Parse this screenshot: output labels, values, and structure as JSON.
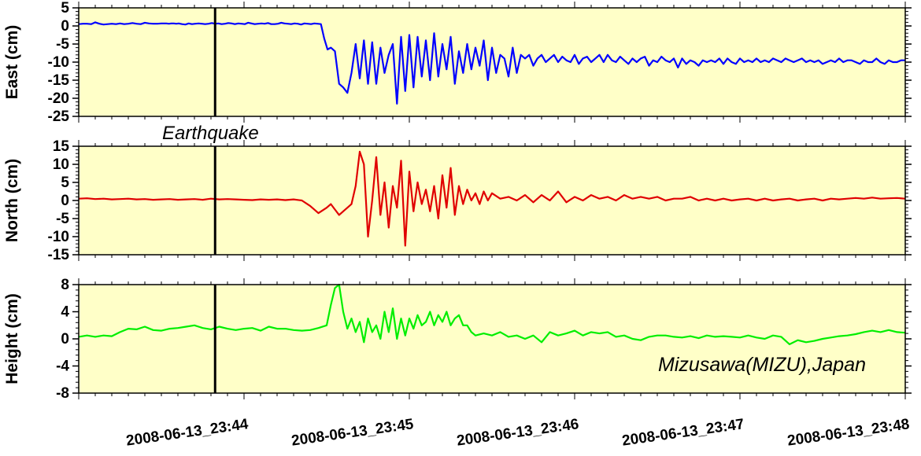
{
  "chart_data": [
    {
      "type": "line",
      "panel": "east",
      "ylabel": "East (cm)",
      "ylim": [
        -25,
        5
      ],
      "yticks": [
        5,
        0,
        -5,
        -10,
        -15,
        -20,
        -25
      ],
      "series": [
        {
          "color": "#0000ff",
          "t": [
            0,
            0.05,
            0.1,
            0.15,
            0.2,
            0.25,
            0.3,
            0.35,
            0.4,
            0.45,
            0.5,
            0.55,
            0.6,
            0.65,
            0.7,
            0.75,
            0.8,
            0.85,
            0.9,
            0.95,
            1.0,
            1.03,
            1.06,
            1.09,
            1.12,
            1.15,
            1.18,
            1.21,
            1.25,
            1.29,
            1.33,
            1.37,
            1.41,
            1.45,
            1.49,
            1.53,
            1.57,
            1.61,
            1.65,
            1.69,
            1.73,
            1.77,
            1.81,
            1.85,
            1.89,
            1.93,
            1.97,
            2.01,
            2.05,
            2.09,
            2.13,
            2.17,
            2.21,
            2.25,
            2.29,
            2.33,
            2.37,
            2.41,
            2.45,
            2.49,
            2.53,
            2.57,
            2.61,
            2.65,
            2.69,
            2.73,
            2.77,
            2.81,
            2.85,
            2.89,
            2.93,
            2.97,
            3.01,
            3.05,
            3.1,
            3.15,
            3.2,
            3.25,
            3.3,
            3.35,
            3.4,
            3.45,
            3.5,
            3.55,
            3.6,
            3.65,
            3.7,
            3.75,
            3.8,
            3.85,
            3.9,
            3.95,
            4.0,
            4.05,
            4.1,
            4.15,
            4.2,
            4.25,
            4.3,
            4.35,
            4.4,
            4.45,
            4.5,
            4.55,
            4.6,
            4.65,
            4.7,
            4.75,
            4.8,
            4.85,
            4.9,
            4.95,
            5.0,
            5.05,
            5.1,
            5.15,
            5.2,
            5.25,
            5.3,
            5.35,
            5.4,
            5.45,
            5.5,
            5.55,
            5.6,
            5.65,
            5.7,
            5.75,
            5.8,
            5.85,
            5.9,
            5.95,
            6.0,
            6.05,
            6.1,
            6.15,
            6.2,
            6.25,
            6.3,
            6.35,
            6.4,
            6.45,
            6.5,
            6.55,
            6.6,
            6.65,
            6.7,
            6.75,
            6.8,
            6.85,
            6.9,
            6.95,
            7.0,
            7.05,
            7.1,
            7.15,
            7.2,
            7.25,
            7.3,
            7.35,
            7.4,
            7.45,
            7.5,
            7.55,
            7.6,
            7.65,
            7.7,
            7.75,
            7.8,
            7.85,
            7.9,
            7.95,
            8.0,
            8.05,
            8.1,
            8.15,
            8.2,
            8.25,
            8.3,
            8.35,
            8.4,
            8.45,
            8.5,
            8.55,
            8.6,
            8.65,
            8.7,
            8.75,
            8.8,
            8.85,
            8.9,
            8.95,
            9.0,
            9.05,
            9.1,
            9.15,
            9.2,
            9.25,
            9.3,
            9.35,
            9.4,
            9.45,
            9.5,
            9.55,
            9.6,
            9.65,
            9.7,
            9.75,
            9.8,
            9.85,
            9.9,
            9.95,
            10.0
          ],
          "v": [
            0.5,
            0.6,
            0.6,
            0.5,
            1.0,
            0.6,
            0.4,
            0.5,
            0.6,
            0.5,
            0.7,
            0.5,
            0.6,
            0.8,
            0.6,
            0.5,
            0.9,
            0.7,
            0.6,
            0.6,
            0.7,
            0.7,
            0.7,
            0.6,
            0.7,
            0.7,
            0.6,
            0.7,
            0.5,
            0.4,
            0.7,
            0.5,
            0.6,
            0.7,
            0.6,
            0.5,
            0.6,
            0.8,
            0.6,
            0.7,
            0.5,
            0.6,
            0.8,
            0.7,
            0.5,
            0.7,
            0.6,
            0.5,
            0.9,
            0.7,
            0.5,
            0.6,
            0.7,
            0.6,
            0.8,
            0.5,
            0.5,
            0.6,
            0.9,
            0.7,
            0.6,
            0.5,
            0.7,
            0.6,
            0.4,
            0.7,
            0.6,
            0.5,
            0.7,
            0.6,
            0.5,
            -3.5,
            -6.5,
            -6.0,
            -7.0,
            -16.0,
            -17.0,
            -18.5,
            -13.0,
            -5.0,
            -14.5,
            -4.0,
            -16.0,
            -4.5,
            -16.0,
            -6.0,
            -13.0,
            -8.0,
            -5.0,
            -21.5,
            -3.0,
            -18.0,
            -2.5,
            -17.0,
            -3.0,
            -14.0,
            -4.0,
            -15.0,
            -2.0,
            -14.0,
            -5.0,
            -12.0,
            -3.0,
            -16.0,
            -7.0,
            -13.0,
            -5.0,
            -12.0,
            -6.0,
            -11.0,
            -4.0,
            -15.0,
            -6.0,
            -13.0,
            -8.0,
            -9.0,
            -14.0,
            -6.0,
            -13.0,
            -8.0,
            -9.0,
            -8.0,
            -11.0,
            -9.0,
            -8.0,
            -10.0,
            -9.0,
            -8.0,
            -10.0,
            -8.5,
            -9.5,
            -10.0,
            -8.0,
            -10.5,
            -9.0,
            -8.5,
            -10.0,
            -9.0,
            -8.0,
            -10.0,
            -8.0,
            -9.5,
            -10.0,
            -8.5,
            -9.5,
            -10.5,
            -9.0,
            -10.0,
            -9.0,
            -8.5,
            -11.0,
            -9.5,
            -10.0,
            -8.5,
            -9.5,
            -10.0,
            -9.0,
            -11.5,
            -9.0,
            -10.5,
            -9.5,
            -10.0,
            -11.0,
            -9.5,
            -10.0,
            -9.5,
            -10.0,
            -9.0,
            -10.5,
            -9.0,
            -10.0,
            -10.5,
            -9.0,
            -10.0,
            -9.5,
            -10.0,
            -9.0,
            -10.0,
            -9.5,
            -10.0,
            -9.0,
            -9.5,
            -10.0,
            -9.0,
            -9.5,
            -10.0,
            -9.5,
            -9.0,
            -10.0,
            -9.5,
            -10.0,
            -9.5,
            -10.5,
            -10.0,
            -9.5,
            -10.0,
            -9.0,
            -10.0,
            -9.5,
            -9.5,
            -10.0,
            -10.5,
            -9.5,
            -10.0,
            -10.0,
            -9.0,
            -10.0,
            -10.5,
            -9.5,
            -10.0,
            -10.0,
            -9.5,
            -9.5,
            -10.5,
            -10.0,
            -9.0,
            -10.0,
            -10.0,
            -9.5,
            -10.0
          ]
        }
      ]
    },
    {
      "type": "line",
      "panel": "north",
      "ylabel": "North (cm)",
      "ylim": [
        -15,
        15
      ],
      "yticks": [
        15,
        10,
        5,
        0,
        -5,
        -10,
        -15
      ],
      "series": [
        {
          "color": "#e00000",
          "t": [
            0,
            0.1,
            0.2,
            0.3,
            0.4,
            0.5,
            0.6,
            0.7,
            0.8,
            0.9,
            1.0,
            1.1,
            1.2,
            1.3,
            1.4,
            1.5,
            1.6,
            1.7,
            1.8,
            1.9,
            2.0,
            2.1,
            2.2,
            2.3,
            2.4,
            2.5,
            2.6,
            2.7,
            2.8,
            2.9,
            3.0,
            3.05,
            3.1,
            3.15,
            3.2,
            3.25,
            3.3,
            3.35,
            3.4,
            3.45,
            3.5,
            3.55,
            3.6,
            3.65,
            3.7,
            3.75,
            3.8,
            3.85,
            3.9,
            3.95,
            4.0,
            4.05,
            4.1,
            4.15,
            4.2,
            4.25,
            4.3,
            4.35,
            4.4,
            4.45,
            4.5,
            4.55,
            4.6,
            4.65,
            4.7,
            4.75,
            4.8,
            4.85,
            4.9,
            4.95,
            5.0,
            5.1,
            5.2,
            5.3,
            5.4,
            5.5,
            5.6,
            5.7,
            5.8,
            5.9,
            6.0,
            6.1,
            6.2,
            6.3,
            6.4,
            6.5,
            6.6,
            6.7,
            6.8,
            6.9,
            7.0,
            7.1,
            7.2,
            7.3,
            7.4,
            7.5,
            7.6,
            7.7,
            7.8,
            7.9,
            8.0,
            8.1,
            8.2,
            8.3,
            8.4,
            8.5,
            8.6,
            8.7,
            8.8,
            8.9,
            9.0,
            9.1,
            9.2,
            9.3,
            9.4,
            9.5,
            9.6,
            9.7,
            9.8,
            9.9,
            10.0
          ],
          "v": [
            0.5,
            0.6,
            0.4,
            0.5,
            0.3,
            0.4,
            0.5,
            0.3,
            0.4,
            0.2,
            0.3,
            0.4,
            0.2,
            0.3,
            0.4,
            0.2,
            0.5,
            0.3,
            0.4,
            0.3,
            0.2,
            0.1,
            0.3,
            0.2,
            0.3,
            0.1,
            0.3,
            0.0,
            -1.5,
            -3.5,
            -2.0,
            -1.0,
            -2.5,
            -4.0,
            -3.0,
            -2.0,
            -1.0,
            4.0,
            13.5,
            10.0,
            -10.0,
            0.0,
            12.0,
            -4.0,
            5.0,
            -7.5,
            4.0,
            -2.0,
            11.0,
            -12.5,
            8.0,
            -3.0,
            5.0,
            -1.0,
            3.0,
            -3.0,
            4.0,
            -5.0,
            7.0,
            -2.0,
            9.0,
            -4.0,
            4.0,
            -1.0,
            3.0,
            0.0,
            2.0,
            -1.0,
            2.5,
            0.0,
            2.0,
            0.5,
            1.0,
            0.0,
            1.5,
            -0.5,
            1.5,
            0.0,
            2.5,
            -0.5,
            1.0,
            0.0,
            1.5,
            0.5,
            1.0,
            0.0,
            1.5,
            0.5,
            1.0,
            0.5,
            1.0,
            0.0,
            0.5,
            0.5,
            1.0,
            0.0,
            0.5,
            0.0,
            0.5,
            0.0,
            0.3,
            0.5,
            0.0,
            0.5,
            0.0,
            0.3,
            0.5,
            0.0,
            0.3,
            0.5,
            0.0,
            0.5,
            0.3,
            0.5,
            0.7,
            0.5,
            0.8,
            0.5,
            0.6,
            0.7,
            0.5
          ]
        }
      ]
    },
    {
      "type": "line",
      "panel": "height",
      "ylabel": "Height (cm)",
      "ylim": [
        -8,
        8
      ],
      "yticks": [
        8,
        4,
        0,
        -4,
        -8
      ],
      "series": [
        {
          "color": "#00ee00",
          "t": [
            0,
            0.1,
            0.2,
            0.3,
            0.4,
            0.5,
            0.6,
            0.7,
            0.8,
            0.9,
            1.0,
            1.1,
            1.2,
            1.3,
            1.4,
            1.5,
            1.6,
            1.7,
            1.8,
            1.9,
            2.0,
            2.1,
            2.2,
            2.3,
            2.4,
            2.5,
            2.6,
            2.7,
            2.8,
            2.9,
            3.0,
            3.05,
            3.1,
            3.15,
            3.2,
            3.25,
            3.3,
            3.35,
            3.4,
            3.45,
            3.5,
            3.55,
            3.6,
            3.65,
            3.7,
            3.75,
            3.8,
            3.85,
            3.9,
            3.95,
            4.0,
            4.05,
            4.1,
            4.15,
            4.2,
            4.25,
            4.3,
            4.35,
            4.4,
            4.45,
            4.5,
            4.55,
            4.6,
            4.65,
            4.7,
            4.75,
            4.8,
            4.9,
            5.0,
            5.1,
            5.2,
            5.3,
            5.4,
            5.5,
            5.6,
            5.7,
            5.8,
            5.9,
            6.0,
            6.1,
            6.2,
            6.3,
            6.4,
            6.5,
            6.6,
            6.7,
            6.8,
            6.9,
            7.0,
            7.1,
            7.2,
            7.3,
            7.4,
            7.5,
            7.6,
            7.7,
            7.8,
            7.9,
            8.0,
            8.1,
            8.2,
            8.3,
            8.4,
            8.5,
            8.6,
            8.7,
            8.8,
            8.9,
            9.0,
            9.1,
            9.2,
            9.3,
            9.4,
            9.5,
            9.6,
            9.7,
            9.8,
            9.9,
            10.0
          ],
          "v": [
            0.3,
            0.5,
            0.3,
            0.5,
            0.4,
            1.0,
            1.5,
            1.4,
            1.8,
            1.3,
            1.2,
            1.5,
            1.6,
            1.8,
            2.0,
            1.6,
            1.4,
            1.8,
            1.5,
            1.3,
            1.5,
            1.6,
            1.2,
            1.8,
            1.5,
            1.5,
            1.3,
            1.2,
            1.3,
            1.6,
            2.0,
            5.0,
            7.5,
            8.0,
            4.0,
            1.5,
            3.0,
            1.0,
            2.5,
            -0.5,
            3.0,
            1.0,
            2.0,
            0.0,
            4.0,
            1.0,
            4.5,
            0.0,
            3.0,
            0.5,
            3.0,
            1.5,
            3.5,
            2.0,
            2.5,
            4.0,
            2.0,
            3.5,
            2.5,
            4.0,
            2.0,
            3.0,
            3.5,
            2.0,
            2.0,
            1.0,
            0.5,
            0.8,
            0.5,
            1.0,
            0.3,
            0.5,
            0.0,
            0.5,
            -0.5,
            1.0,
            0.5,
            0.8,
            1.2,
            0.5,
            1.0,
            0.8,
            1.0,
            0.3,
            0.5,
            0.0,
            -0.2,
            0.3,
            0.5,
            0.5,
            0.3,
            0.2,
            0.4,
            0.1,
            0.5,
            0.3,
            0.4,
            0.3,
            0.2,
            0.5,
            0.2,
            0.0,
            0.5,
            0.3,
            -0.8,
            -0.2,
            -0.5,
            -0.3,
            0.0,
            0.2,
            0.4,
            0.5,
            0.7,
            1.0,
            1.2,
            1.0,
            1.3,
            1.0,
            0.9,
            1.1,
            1.4
          ]
        }
      ]
    }
  ],
  "x_axis": {
    "range_minutes": [
      0,
      5
    ],
    "ticks": [
      {
        "label": "2008-06-13_23:44",
        "at": 1
      },
      {
        "label": "2008-06-13_23:45",
        "at": 2
      },
      {
        "label": "2008-06-13_23:46",
        "at": 3
      },
      {
        "label": "2008-06-13_23:47",
        "at": 4
      },
      {
        "label": "2008-06-13_23:48",
        "at": 5
      }
    ]
  },
  "event": {
    "label": "Earthquake",
    "at_minutes": 0.825
  },
  "station_label": "Mizusawa(MIZU),Japan",
  "colors": {
    "panel_bg": "#ffffc8",
    "event_line": "#000000"
  }
}
